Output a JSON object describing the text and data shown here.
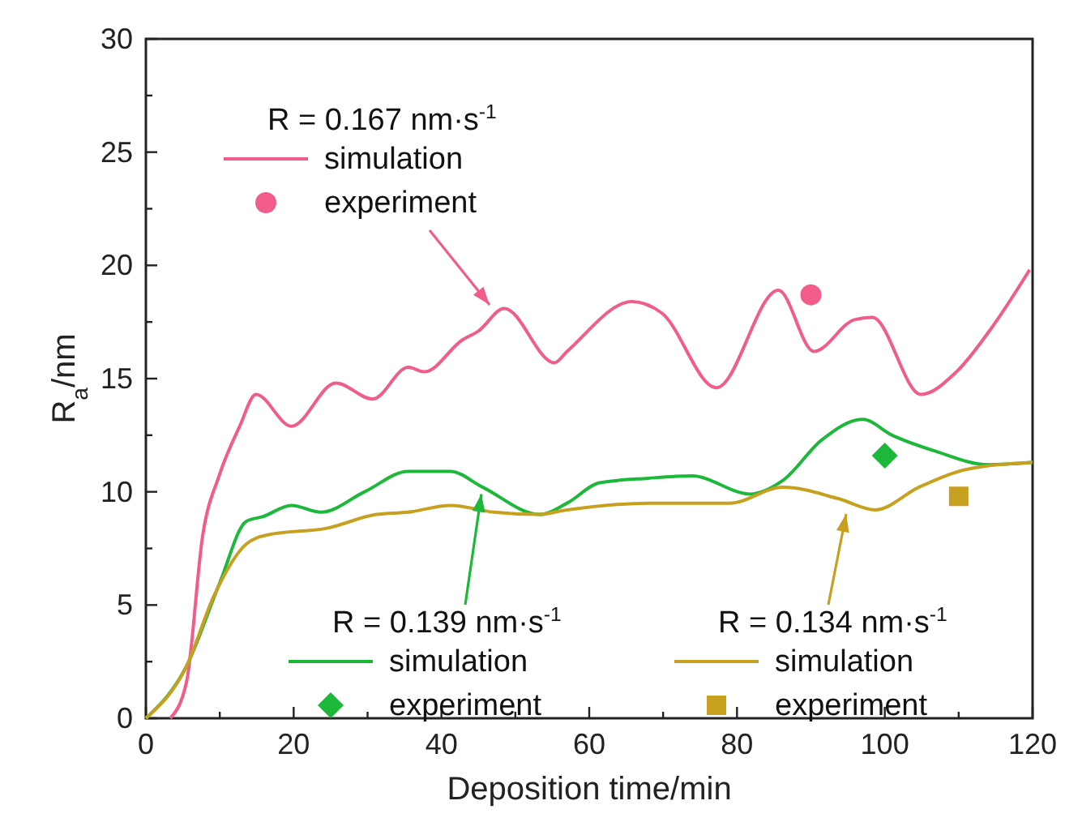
{
  "chart_data": {
    "type": "line",
    "xlabel": "Deposition time/min",
    "ylabel": "R$_{a}$/nm",
    "xlim": [
      0,
      120
    ],
    "ylim": [
      0,
      30
    ],
    "xticks": [
      0,
      {
        "value": 10,
        "label": null
      },
      20,
      {
        "value": 30,
        "label": null
      },
      40,
      {
        "value": 50,
        "label": null
      },
      60,
      {
        "value": 70,
        "label": null
      },
      80,
      {
        "value": 90,
        "label": null
      },
      100,
      {
        "value": 110,
        "label": null
      },
      120
    ],
    "yticks": [
      0,
      {
        "value": 2.5,
        "label": null
      },
      5,
      {
        "value": 7.5,
        "label": null
      },
      10,
      {
        "value": 12.5,
        "label": null
      },
      15,
      {
        "value": 17.5,
        "label": null
      },
      20,
      {
        "value": 22.5,
        "label": null
      },
      25,
      {
        "value": 27.5,
        "label": null
      },
      30
    ],
    "grid": false,
    "legend": "bottom left",
    "line_style": "solid",
    "annotations": [
      "R = 0.167 nm·s$^{-1}$",
      {
        "text": "R = 0.139 nm·s$^{-1}$",
        "x": 45.4,
        "y": 9.9
      },
      "R = 0.134 nm·s$^{-1}$"
    ],
    "series": [
      {
        "name": "simulation",
        "marker": "none",
        "color": "#f25c8a",
        "x": [
          3.3,
          5.5,
          7.7,
          9.9,
          12.7,
          14.9,
          19.7,
          25.7,
          30.7,
          35.5,
          37.7,
          42.8,
          45,
          48.5,
          55.3,
          57,
          65.8,
          69.8,
          77.2,
          85.6,
          90.4,
          95.9,
          98.3,
          104.9,
          109.7,
          114.8,
          119.6
        ],
        "values": [
          0,
          1.6,
          8.1,
          10.7,
          12.9,
          14.3,
          12.9,
          14.8,
          14.1,
          15.5,
          15.3,
          16.7,
          17.1,
          18.1,
          15.7,
          16.2,
          18.4,
          17.9,
          14.6,
          18.9,
          16.2,
          17.6,
          17.7,
          14.3,
          15.3,
          17.4,
          19.8
        ]
      },
      {
        "name": "experiment",
        "type": "scatter",
        "marker": "circle",
        "color": "#f25c8a",
        "x": [
          90
        ],
        "values": [
          18.7
        ]
      },
      {
        "name": "simulation",
        "marker": "none",
        "color": "#1db83a",
        "x": [
          0,
          5.5,
          9.9,
          13.6,
          15.8,
          19.7,
          23.7,
          29.6,
          35.5,
          41.2,
          45.6,
          53.3,
          57,
          61.4,
          68,
          73.9,
          81.8,
          86.2,
          91.5,
          97,
          101,
          106.8,
          114,
          120
        ],
        "values": [
          0,
          2.3,
          5.9,
          8.7,
          8.9,
          9.4,
          9.1,
          10,
          10.9,
          10.9,
          10.2,
          9,
          9.5,
          10.4,
          10.6,
          10.7,
          9.9,
          10.5,
          12.3,
          13.2,
          12.5,
          11.8,
          11.2,
          11.3
        ]
      },
      {
        "name": "experiment",
        "type": "scatter",
        "marker": "diamond",
        "color": "#1db83a",
        "x": [
          100
        ],
        "values": [
          11.6
        ]
      },
      {
        "name": "simulation",
        "marker": "none",
        "color": "#c8a020",
        "x": [
          0,
          5.5,
          9.2,
          13.6,
          16.5,
          24.6,
          31.2,
          35.5,
          41.2,
          47.1,
          53,
          57,
          68,
          79,
          86.2,
          93.7,
          98.7,
          104.6,
          111.2,
          120
        ],
        "values": [
          0,
          2.3,
          5.4,
          7.7,
          8.1,
          8.4,
          9,
          9.1,
          9.4,
          9.1,
          9,
          9.2,
          9.5,
          9.5,
          10.2,
          9.7,
          9.2,
          10.2,
          11,
          11.3
        ]
      },
      {
        "name": "experiment",
        "type": "scatter",
        "marker": "square",
        "color": "#c8a020",
        "x": [
          110
        ],
        "values": [
          9.8
        ]
      }
    ]
  }
}
